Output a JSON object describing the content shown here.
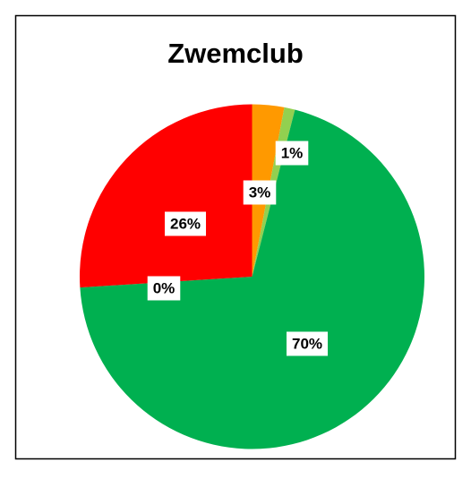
{
  "chart_data": {
    "type": "pie",
    "title": "Zwemclub",
    "values": [
      3,
      1,
      70,
      0,
      26
    ],
    "value_labels": [
      "3%",
      "1%",
      "70%",
      "0%",
      "26%"
    ],
    "colors": [
      "#ff9900",
      "#92d050",
      "#00b050",
      "#ffc000",
      "#ff0000"
    ]
  }
}
